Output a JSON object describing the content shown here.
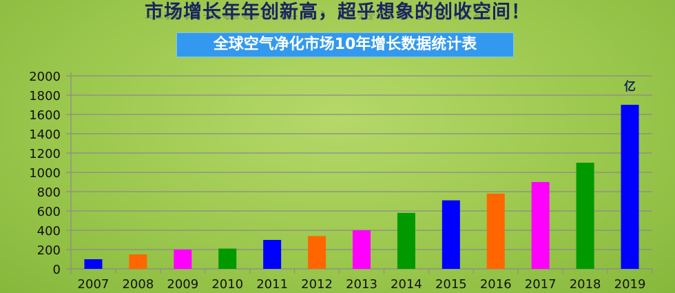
{
  "title": "市场增长年年创新高，超乎想象的创收空间！",
  "subtitle": "全球空气净化市场10年增长数据统计表",
  "chart_data": {
    "type": "bar",
    "categories": [
      "2007",
      "2008",
      "2009",
      "2010",
      "2011",
      "2012",
      "2013",
      "2014",
      "2015",
      "2016",
      "2017",
      "2018",
      "2019"
    ],
    "values": [
      100,
      150,
      200,
      210,
      300,
      340,
      400,
      580,
      710,
      780,
      900,
      1100,
      1700
    ],
    "colors": [
      "#0000ff",
      "#ff6600",
      "#ff00ff",
      "#009900",
      "#0000ff",
      "#ff6600",
      "#ff00ff",
      "#009900",
      "#0000ff",
      "#ff6600",
      "#ff00ff",
      "#009900",
      "#0000ff"
    ],
    "ylim": [
      0,
      2000
    ],
    "yticks": [
      0,
      200,
      400,
      600,
      800,
      1000,
      1200,
      1400,
      1600,
      1800,
      2000
    ],
    "unit_label": "亿",
    "grid": true,
    "legend": "none"
  }
}
